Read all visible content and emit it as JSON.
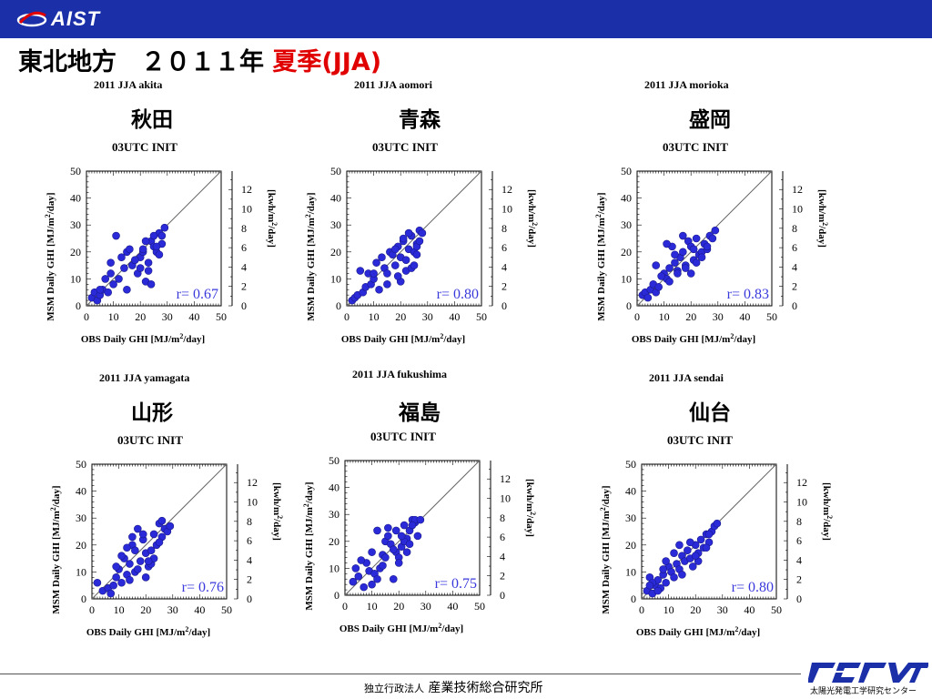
{
  "header": {
    "logo_text": "AIST",
    "title_main": "東北地方　２０１１年",
    "title_highlight": "夏季(JJA)"
  },
  "colors": {
    "header_bar": "#1b2fa8",
    "title_highlight": "#e00000",
    "points": "#2a2ad8",
    "r_label": "#3a3adc"
  },
  "footer": {
    "org_prefix": "独立行政法人",
    "org_name": "産業技術総合研究所",
    "center_caption": "太陽光発電工学研究センター"
  },
  "panels": [
    {
      "city": "秋田",
      "title": "2011 JJA  akita",
      "subtitle": "03UTC INIT",
      "r_label": "r= 0.67"
    },
    {
      "city": "青森",
      "title": "2011 JJA  aomori",
      "subtitle": "03UTC INIT",
      "r_label": "r= 0.80"
    },
    {
      "city": "盛岡",
      "title": "2011 JJA  morioka",
      "subtitle": "03UTC INIT",
      "r_label": "r= 0.83"
    },
    {
      "city": "山形",
      "title": "2011 JJA  yamagata",
      "subtitle": "03UTC INIT",
      "r_label": "r= 0.76"
    },
    {
      "city": "福島",
      "title": "2011 JJA  fukushima",
      "subtitle": "03UTC INIT",
      "r_label": "r= 0.75"
    },
    {
      "city": "仙台",
      "title": "2011 JJA  sendai",
      "subtitle": "03UTC INIT",
      "r_label": "r= 0.80"
    }
  ],
  "chart_data": [
    {
      "type": "scatter",
      "title": "2011 JJA  akita",
      "subtitle": "03UTC INIT",
      "xlabel": "OBS Daily GHI [MJ/m²/day]",
      "ylabel": "MSM Daily GHI [MJ/m²/day]",
      "y2label": "[kwh/m²/day]",
      "xlim": [
        0,
        50
      ],
      "ylim": [
        0,
        50
      ],
      "y2lim": [
        0,
        13.9
      ],
      "xticks": [
        0,
        10,
        20,
        30,
        40,
        50
      ],
      "yticks": [
        0,
        10,
        20,
        30,
        40,
        50
      ],
      "y2ticks": [
        0,
        2,
        4,
        6,
        8,
        10,
        12
      ],
      "reference_line": "y=x",
      "r": 0.67,
      "x": [
        2,
        3,
        4,
        5,
        6,
        8,
        10,
        12,
        14,
        15,
        17,
        19,
        20,
        21,
        22,
        23,
        24,
        25,
        26,
        27,
        28,
        29,
        9,
        13,
        16,
        18,
        22,
        25,
        27,
        28,
        11,
        7,
        20,
        24,
        26,
        5,
        9,
        15,
        21,
        23
      ],
      "y": [
        3,
        5,
        2,
        4,
        6,
        5,
        8,
        10,
        14,
        20,
        15,
        12,
        18,
        20,
        9,
        16,
        24,
        22,
        20,
        27,
        23,
        29,
        16,
        18,
        21,
        17,
        24,
        26,
        19,
        26,
        26,
        10,
        14,
        8,
        22,
        6,
        12,
        6,
        21,
        13
      ]
    },
    {
      "type": "scatter",
      "title": "2011 JJA  aomori",
      "subtitle": "03UTC INIT",
      "xlabel": "OBS Daily GHI [MJ/m²/day]",
      "ylabel": "MSM Daily GHI [MJ/m²/day]",
      "y2label": "[kwh/m²/day]",
      "xlim": [
        0,
        50
      ],
      "ylim": [
        0,
        50
      ],
      "y2lim": [
        0,
        13.9
      ],
      "xticks": [
        0,
        10,
        20,
        30,
        40,
        50
      ],
      "yticks": [
        0,
        10,
        20,
        30,
        40,
        50
      ],
      "y2ticks": [
        0,
        2,
        4,
        6,
        8,
        10,
        12
      ],
      "reference_line": "y=x",
      "r": 0.8,
      "x": [
        2,
        3,
        4,
        6,
        7,
        9,
        10,
        12,
        14,
        15,
        16,
        18,
        19,
        20,
        21,
        22,
        23,
        24,
        25,
        26,
        27,
        28,
        5,
        11,
        13,
        17,
        20,
        24,
        26,
        8,
        15,
        19,
        22,
        25,
        27,
        10,
        18,
        21,
        23,
        26
      ],
      "y": [
        2,
        3,
        4,
        5,
        7,
        8,
        10,
        6,
        14,
        12,
        20,
        15,
        22,
        18,
        24,
        13,
        21,
        26,
        20,
        23,
        28,
        27,
        13,
        16,
        18,
        19,
        9,
        14,
        22,
        12,
        8,
        11,
        17,
        15,
        24,
        12,
        21,
        25,
        27,
        19
      ]
    },
    {
      "type": "scatter",
      "title": "2011 JJA  morioka",
      "subtitle": "03UTC INIT",
      "xlabel": "OBS Daily GHI [MJ/m²/day]",
      "ylabel": "MSM Daily GHI [MJ/m²/day]",
      "y2label": "[kwh/m²/day]",
      "xlim": [
        0,
        50
      ],
      "ylim": [
        0,
        50
      ],
      "y2lim": [
        0,
        13.9
      ],
      "xticks": [
        0,
        10,
        20,
        30,
        40,
        50
      ],
      "yticks": [
        0,
        10,
        20,
        30,
        40,
        50
      ],
      "y2ticks": [
        0,
        2,
        4,
        6,
        8,
        10,
        12
      ],
      "reference_line": "y=x",
      "r": 0.83,
      "x": [
        2,
        3,
        4,
        5,
        6,
        7,
        8,
        10,
        11,
        12,
        13,
        14,
        15,
        16,
        17,
        18,
        19,
        20,
        21,
        22,
        23,
        24,
        25,
        26,
        27,
        28,
        29,
        7,
        9,
        12,
        15,
        18,
        20,
        22,
        24,
        26,
        11,
        14,
        17,
        21
      ],
      "y": [
        4,
        5,
        3,
        6,
        8,
        5,
        7,
        12,
        10,
        14,
        22,
        16,
        13,
        18,
        20,
        15,
        24,
        22,
        17,
        25,
        19,
        20,
        23,
        21,
        26,
        25,
        28,
        15,
        11,
        9,
        12,
        14,
        12,
        16,
        18,
        22,
        23,
        19,
        26,
        21
      ]
    },
    {
      "type": "scatter",
      "title": "2011 JJA  yamagata",
      "subtitle": "03UTC INIT",
      "xlabel": "OBS Daily GHI [MJ/m²/day]",
      "ylabel": "MSM Daily GHI [MJ/m²/day]",
      "y2label": "[kwh/m²/day]",
      "xlim": [
        0,
        50
      ],
      "ylim": [
        0,
        50
      ],
      "y2lim": [
        0,
        13.9
      ],
      "xticks": [
        0,
        10,
        20,
        30,
        40,
        50
      ],
      "yticks": [
        0,
        10,
        20,
        30,
        40,
        50
      ],
      "y2ticks": [
        0,
        2,
        4,
        6,
        8,
        10,
        12
      ],
      "reference_line": "y=x",
      "r": 0.76,
      "x": [
        2,
        4,
        6,
        8,
        9,
        10,
        11,
        12,
        13,
        14,
        15,
        16,
        17,
        18,
        19,
        20,
        21,
        22,
        23,
        24,
        25,
        26,
        27,
        28,
        29,
        7,
        11,
        14,
        16,
        19,
        22,
        25,
        13,
        17,
        20,
        23,
        26,
        9,
        15,
        21
      ],
      "y": [
        6,
        3,
        4,
        5,
        8,
        11,
        6,
        15,
        9,
        13,
        20,
        10,
        26,
        14,
        22,
        17,
        12,
        18,
        24,
        20,
        28,
        23,
        26,
        25,
        27,
        2,
        16,
        7,
        18,
        24,
        13,
        21,
        19,
        11,
        8,
        15,
        29,
        12,
        23,
        14
      ]
    },
    {
      "type": "scatter",
      "title": "2011 JJA  fukushima",
      "subtitle": "03UTC INIT",
      "xlabel": "OBS Daily GHI [MJ/m²/day]",
      "ylabel": "MSM Daily GHI [MJ/m²/day]",
      "y2label": "[kwh/m²/day]",
      "xlim": [
        0,
        50
      ],
      "ylim": [
        0,
        50
      ],
      "y2lim": [
        0,
        13.9
      ],
      "xticks": [
        0,
        10,
        20,
        30,
        40,
        50
      ],
      "yticks": [
        0,
        10,
        20,
        30,
        40,
        50
      ],
      "y2ticks": [
        0,
        2,
        4,
        6,
        8,
        10,
        12
      ],
      "reference_line": "y=x",
      "r": 0.75,
      "x": [
        3,
        4,
        5,
        7,
        8,
        9,
        10,
        11,
        12,
        13,
        14,
        15,
        16,
        17,
        18,
        19,
        20,
        21,
        22,
        23,
        24,
        25,
        26,
        27,
        6,
        10,
        14,
        16,
        18,
        20,
        22,
        24,
        26,
        12,
        15,
        19,
        21,
        23,
        25,
        28
      ],
      "y": [
        5,
        10,
        7,
        3,
        12,
        9,
        16,
        8,
        24,
        10,
        15,
        20,
        22,
        19,
        6,
        16,
        14,
        18,
        26,
        21,
        24,
        28,
        27,
        22,
        13,
        4,
        11,
        25,
        17,
        12,
        20,
        19,
        28,
        6,
        14,
        24,
        22,
        16,
        26,
        28
      ]
    },
    {
      "type": "scatter",
      "title": "2011 JJA  sendai",
      "subtitle": "03UTC INIT",
      "xlabel": "OBS Daily GHI [MJ/m²/day]",
      "ylabel": "MSM Daily GHI [MJ/m²/day]",
      "y2label": "[kwh/m²/day]",
      "xlim": [
        0,
        50
      ],
      "ylim": [
        0,
        50
      ],
      "y2lim": [
        0,
        13.9
      ],
      "xticks": [
        0,
        10,
        20,
        30,
        40,
        50
      ],
      "yticks": [
        0,
        10,
        20,
        30,
        40,
        50
      ],
      "y2ticks": [
        0,
        2,
        4,
        6,
        8,
        10,
        12
      ],
      "reference_line": "y=x",
      "r": 0.8,
      "x": [
        2,
        3,
        4,
        5,
        6,
        7,
        8,
        9,
        10,
        11,
        12,
        13,
        14,
        15,
        16,
        17,
        18,
        19,
        20,
        21,
        22,
        23,
        24,
        25,
        26,
        27,
        28,
        4,
        6,
        9,
        12,
        15,
        18,
        21,
        24,
        3,
        8,
        14,
        20,
        25
      ],
      "y": [
        3,
        8,
        2,
        5,
        7,
        4,
        9,
        6,
        12,
        10,
        8,
        13,
        11,
        16,
        14,
        18,
        15,
        12,
        20,
        17,
        22,
        19,
        24,
        21,
        25,
        27,
        28,
        6,
        3,
        14,
        17,
        9,
        21,
        14,
        19,
        5,
        11,
        20,
        16,
        24
      ]
    }
  ]
}
